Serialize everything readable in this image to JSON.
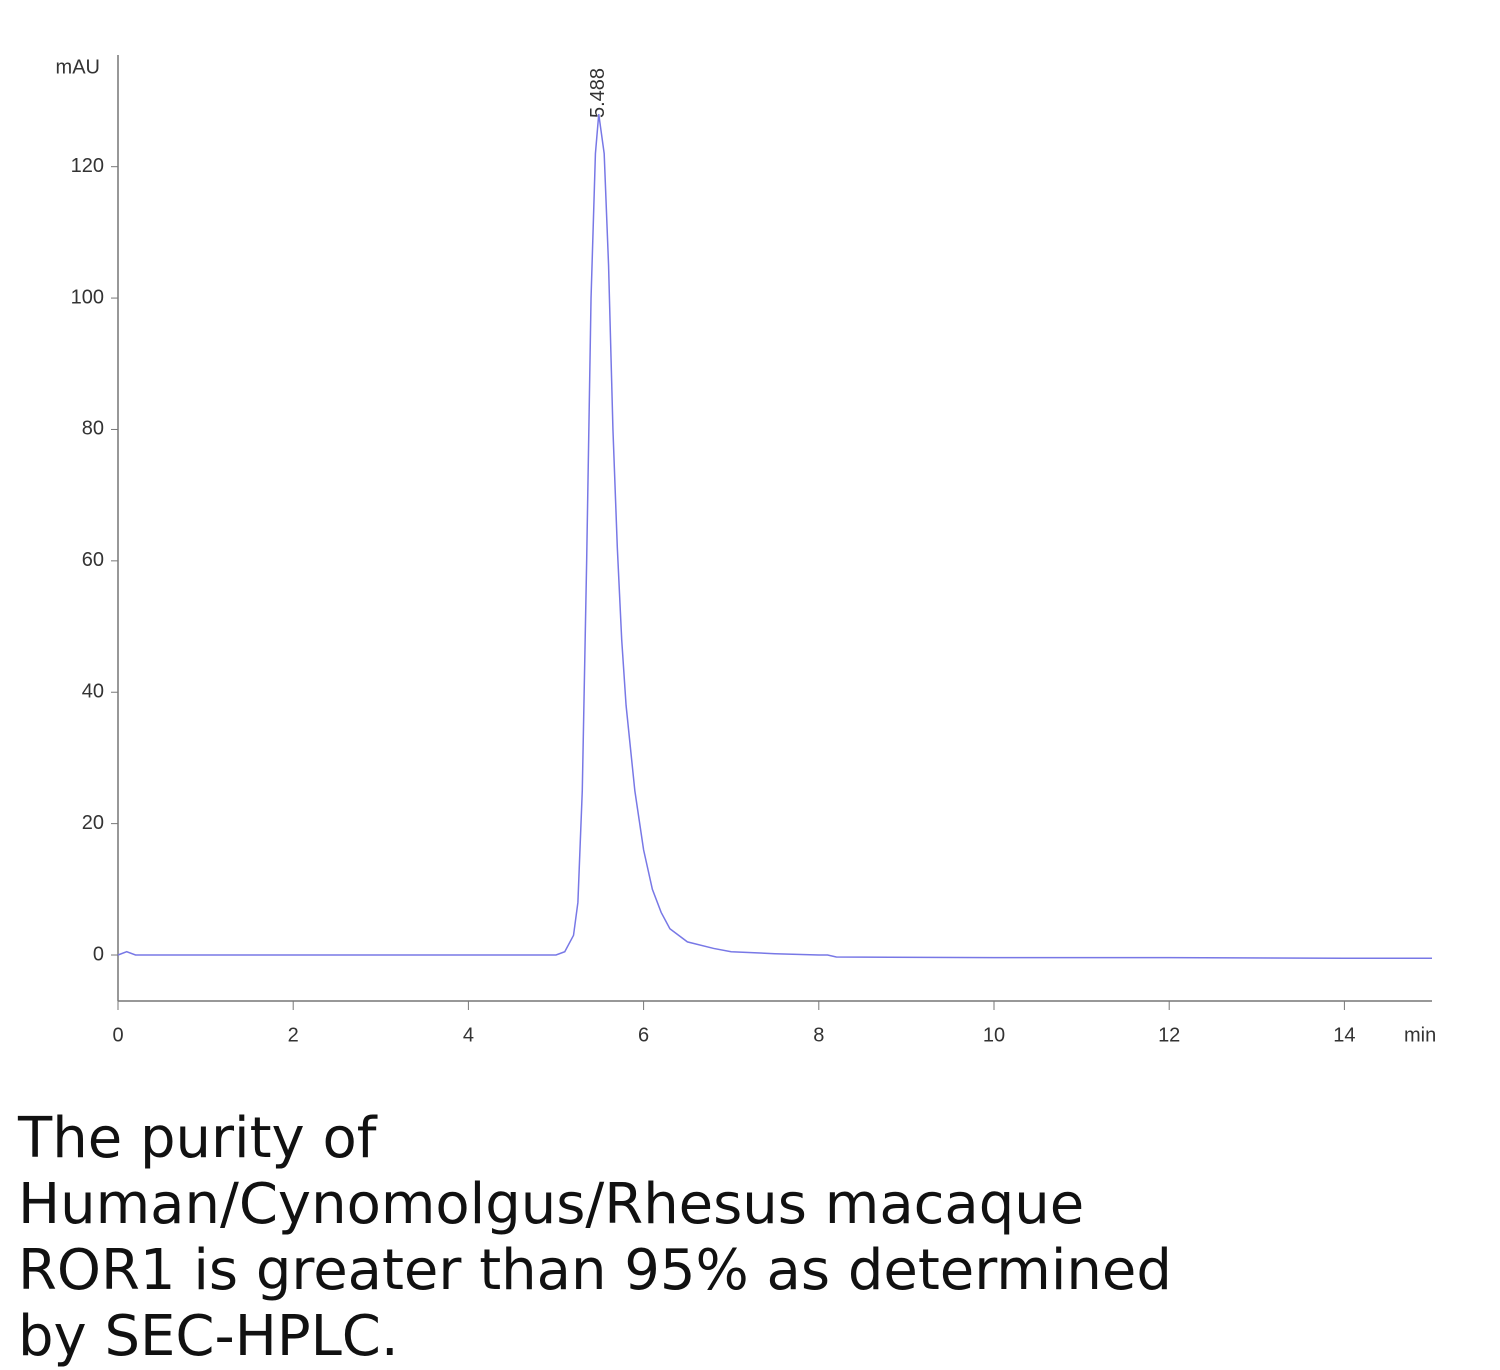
{
  "chart_data": {
    "type": "line",
    "y_label": "mAU",
    "x_label": "min",
    "x": [
      0,
      0.1,
      0.2,
      1,
      2,
      3,
      4,
      4.8,
      5.0,
      5.1,
      5.2,
      5.25,
      5.3,
      5.35,
      5.4,
      5.45,
      5.488,
      5.55,
      5.6,
      5.65,
      5.7,
      5.75,
      5.8,
      5.9,
      6.0,
      6.1,
      6.2,
      6.3,
      6.5,
      6.8,
      7.0,
      7.5,
      8.0,
      8.1,
      8.2,
      10,
      12,
      14,
      15
    ],
    "values": [
      0,
      0.5,
      0,
      0,
      0,
      0,
      0,
      0,
      0,
      0.5,
      3,
      8,
      25,
      60,
      100,
      122,
      128,
      122,
      105,
      80,
      62,
      48,
      38,
      25,
      16,
      10,
      6.5,
      4,
      2,
      1,
      0.5,
      0.2,
      0,
      0,
      -0.3,
      -0.4,
      -0.4,
      -0.5,
      -0.5
    ],
    "color": "#7878e6",
    "peak_annotations": [
      5.488
    ],
    "xlim": [
      0,
      15
    ],
    "ylim": [
      -7,
      137
    ],
    "xticks": [
      0,
      2,
      4,
      6,
      8,
      10,
      12,
      14
    ],
    "yticks": [
      0,
      20,
      40,
      60,
      80,
      100,
      120
    ],
    "grid": false
  },
  "caption": "The purity of Human/Cynomolgus/Rhesus macaque ROR1 is greater than 95% as determined by SEC-HPLC."
}
